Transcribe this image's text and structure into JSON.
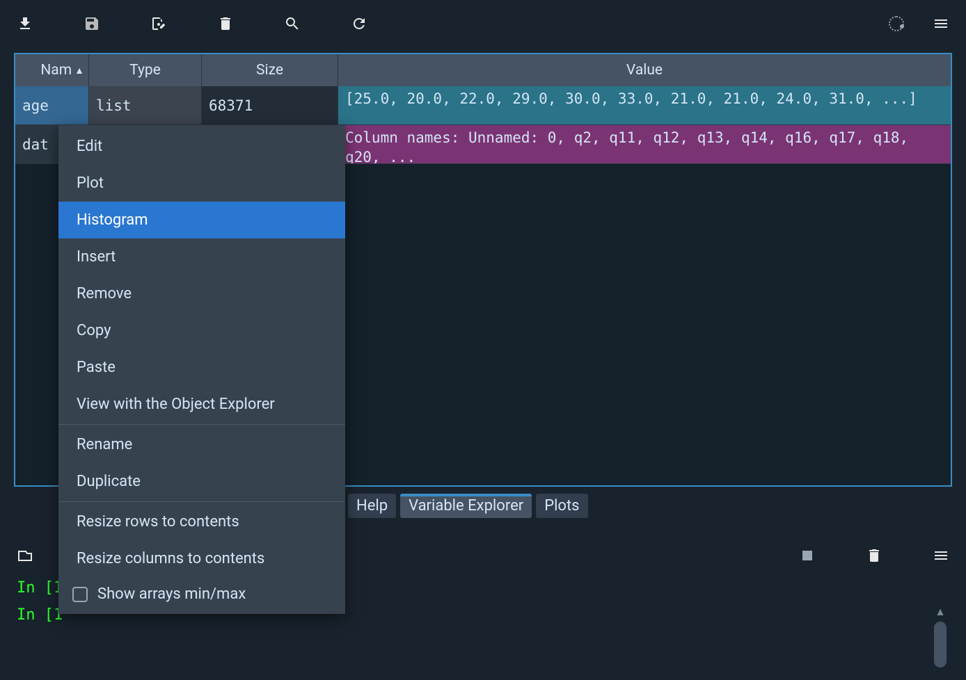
{
  "toolbar": {
    "icons": [
      "download",
      "save",
      "save-as",
      "delete",
      "search",
      "refresh"
    ],
    "right_icons": [
      "spinner",
      "menu"
    ]
  },
  "table": {
    "headers": {
      "name": "Nam",
      "type": "Type",
      "size": "Size",
      "value": "Value"
    },
    "rows": [
      {
        "name": "age",
        "type": "list",
        "size": "68371",
        "value": "[25.0, 20.0, 22.0, 29.0, 30.0, 33.0, 21.0, 21.0, 24.0, 31.0, ...]",
        "value_color": "teal",
        "selected": true
      },
      {
        "name": "dat",
        "type": "",
        "size": "",
        "value": "Column names: Unnamed: 0, q2, q11, q12, q13, q14, q16, q17, q18, q20, ...",
        "value_color": "purple",
        "selected": false
      }
    ]
  },
  "tabs": [
    {
      "label": "Help",
      "active": false
    },
    {
      "label": "Variable Explorer",
      "active": true
    },
    {
      "label": "Plots",
      "active": false
    }
  ],
  "console": {
    "lines": [
      "In [1",
      "In [1"
    ]
  },
  "context_menu": {
    "items": [
      {
        "label": "Edit",
        "type": "item"
      },
      {
        "label": "Plot",
        "type": "item"
      },
      {
        "label": "Histogram",
        "type": "item",
        "highlighted": true
      },
      {
        "label": "Insert",
        "type": "item"
      },
      {
        "label": "Remove",
        "type": "item"
      },
      {
        "label": "Copy",
        "type": "item"
      },
      {
        "label": "Paste",
        "type": "item"
      },
      {
        "label": "View with the Object Explorer",
        "type": "item"
      },
      {
        "type": "sep"
      },
      {
        "label": "Rename",
        "type": "item"
      },
      {
        "label": "Duplicate",
        "type": "item"
      },
      {
        "type": "sep"
      },
      {
        "label": "Resize rows to contents",
        "type": "item"
      },
      {
        "label": "Resize columns to contents",
        "type": "item"
      },
      {
        "label": "Show arrays min/max",
        "type": "check"
      }
    ]
  },
  "colors": {
    "bg": "#19232d",
    "panel_border": "#3a8cc4",
    "header_bg": "#455364",
    "menu_bg": "#37424f",
    "highlight": "#2977d0",
    "teal": "#2a7388",
    "purple": "#7b3473",
    "console_green": "#2cff2c"
  }
}
